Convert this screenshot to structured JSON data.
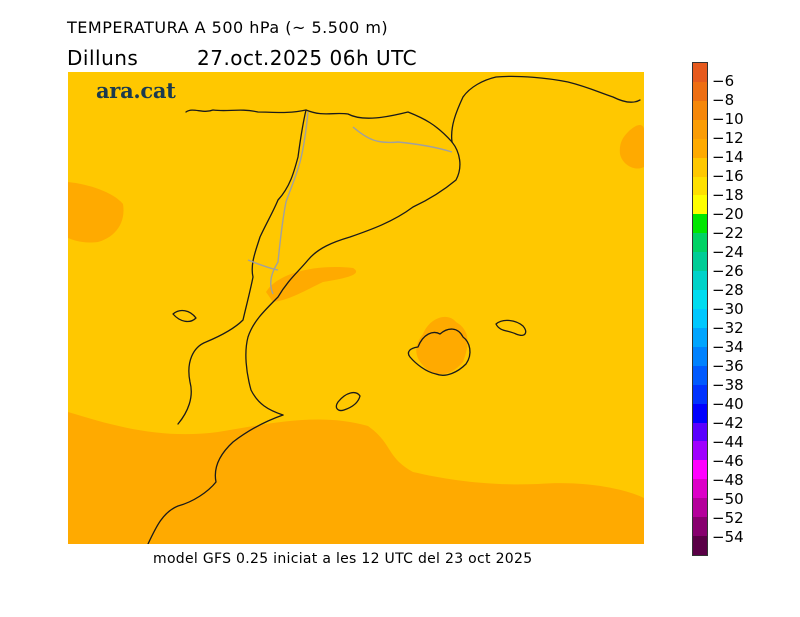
{
  "header": {
    "title": "TEMPERATURA A 500 hPa (~ 5.500 m)",
    "day": "Dilluns",
    "datetime": "27.oct.2025 06h UTC"
  },
  "logo": {
    "text": "ara.cat",
    "color": "#1a3a4f"
  },
  "map": {
    "region": "Catalunya, Comunitat Valenciana i Illes Balears",
    "base_color": "#ffc800",
    "warm_color": "#ffaa00"
  },
  "footer": {
    "model_text": "model GFS 0.25 iniciat a les 12 UTC del 23 oct 2025"
  },
  "legend": {
    "segments": [
      {
        "value": "-6",
        "color": "#e65a1e"
      },
      {
        "value": "-8",
        "color": "#ee6e12"
      },
      {
        "value": "-10",
        "color": "#f5870a"
      },
      {
        "value": "-12",
        "color": "#fa9c05"
      },
      {
        "value": "-14",
        "color": "#ffaa00"
      },
      {
        "value": "-16",
        "color": "#ffc800"
      },
      {
        "value": "-18",
        "color": "#ffe000"
      },
      {
        "value": "-20",
        "color": "#ffff00"
      },
      {
        "value": "-22",
        "color": "#00e600"
      },
      {
        "value": "-24",
        "color": "#00d264"
      },
      {
        "value": "-26",
        "color": "#00cd96"
      },
      {
        "value": "-28",
        "color": "#00d2c8"
      },
      {
        "value": "-30",
        "color": "#00dcf0"
      },
      {
        "value": "-32",
        "color": "#00c8ff"
      },
      {
        "value": "-34",
        "color": "#00a5ff"
      },
      {
        "value": "-36",
        "color": "#0082ff"
      },
      {
        "value": "-38",
        "color": "#005aff"
      },
      {
        "value": "-40",
        "color": "#0032ff"
      },
      {
        "value": "-42",
        "color": "#0000ff"
      },
      {
        "value": "-44",
        "color": "#5a00ff"
      },
      {
        "value": "-46",
        "color": "#a000ff"
      },
      {
        "value": "-48",
        "color": "#ff00ff"
      },
      {
        "value": "-50",
        "color": "#dc00c8"
      },
      {
        "value": "-52",
        "color": "#b4009b"
      },
      {
        "value": "-54",
        "color": "#87006e"
      },
      {
        "value": "",
        "color": "#5a0046"
      }
    ]
  }
}
